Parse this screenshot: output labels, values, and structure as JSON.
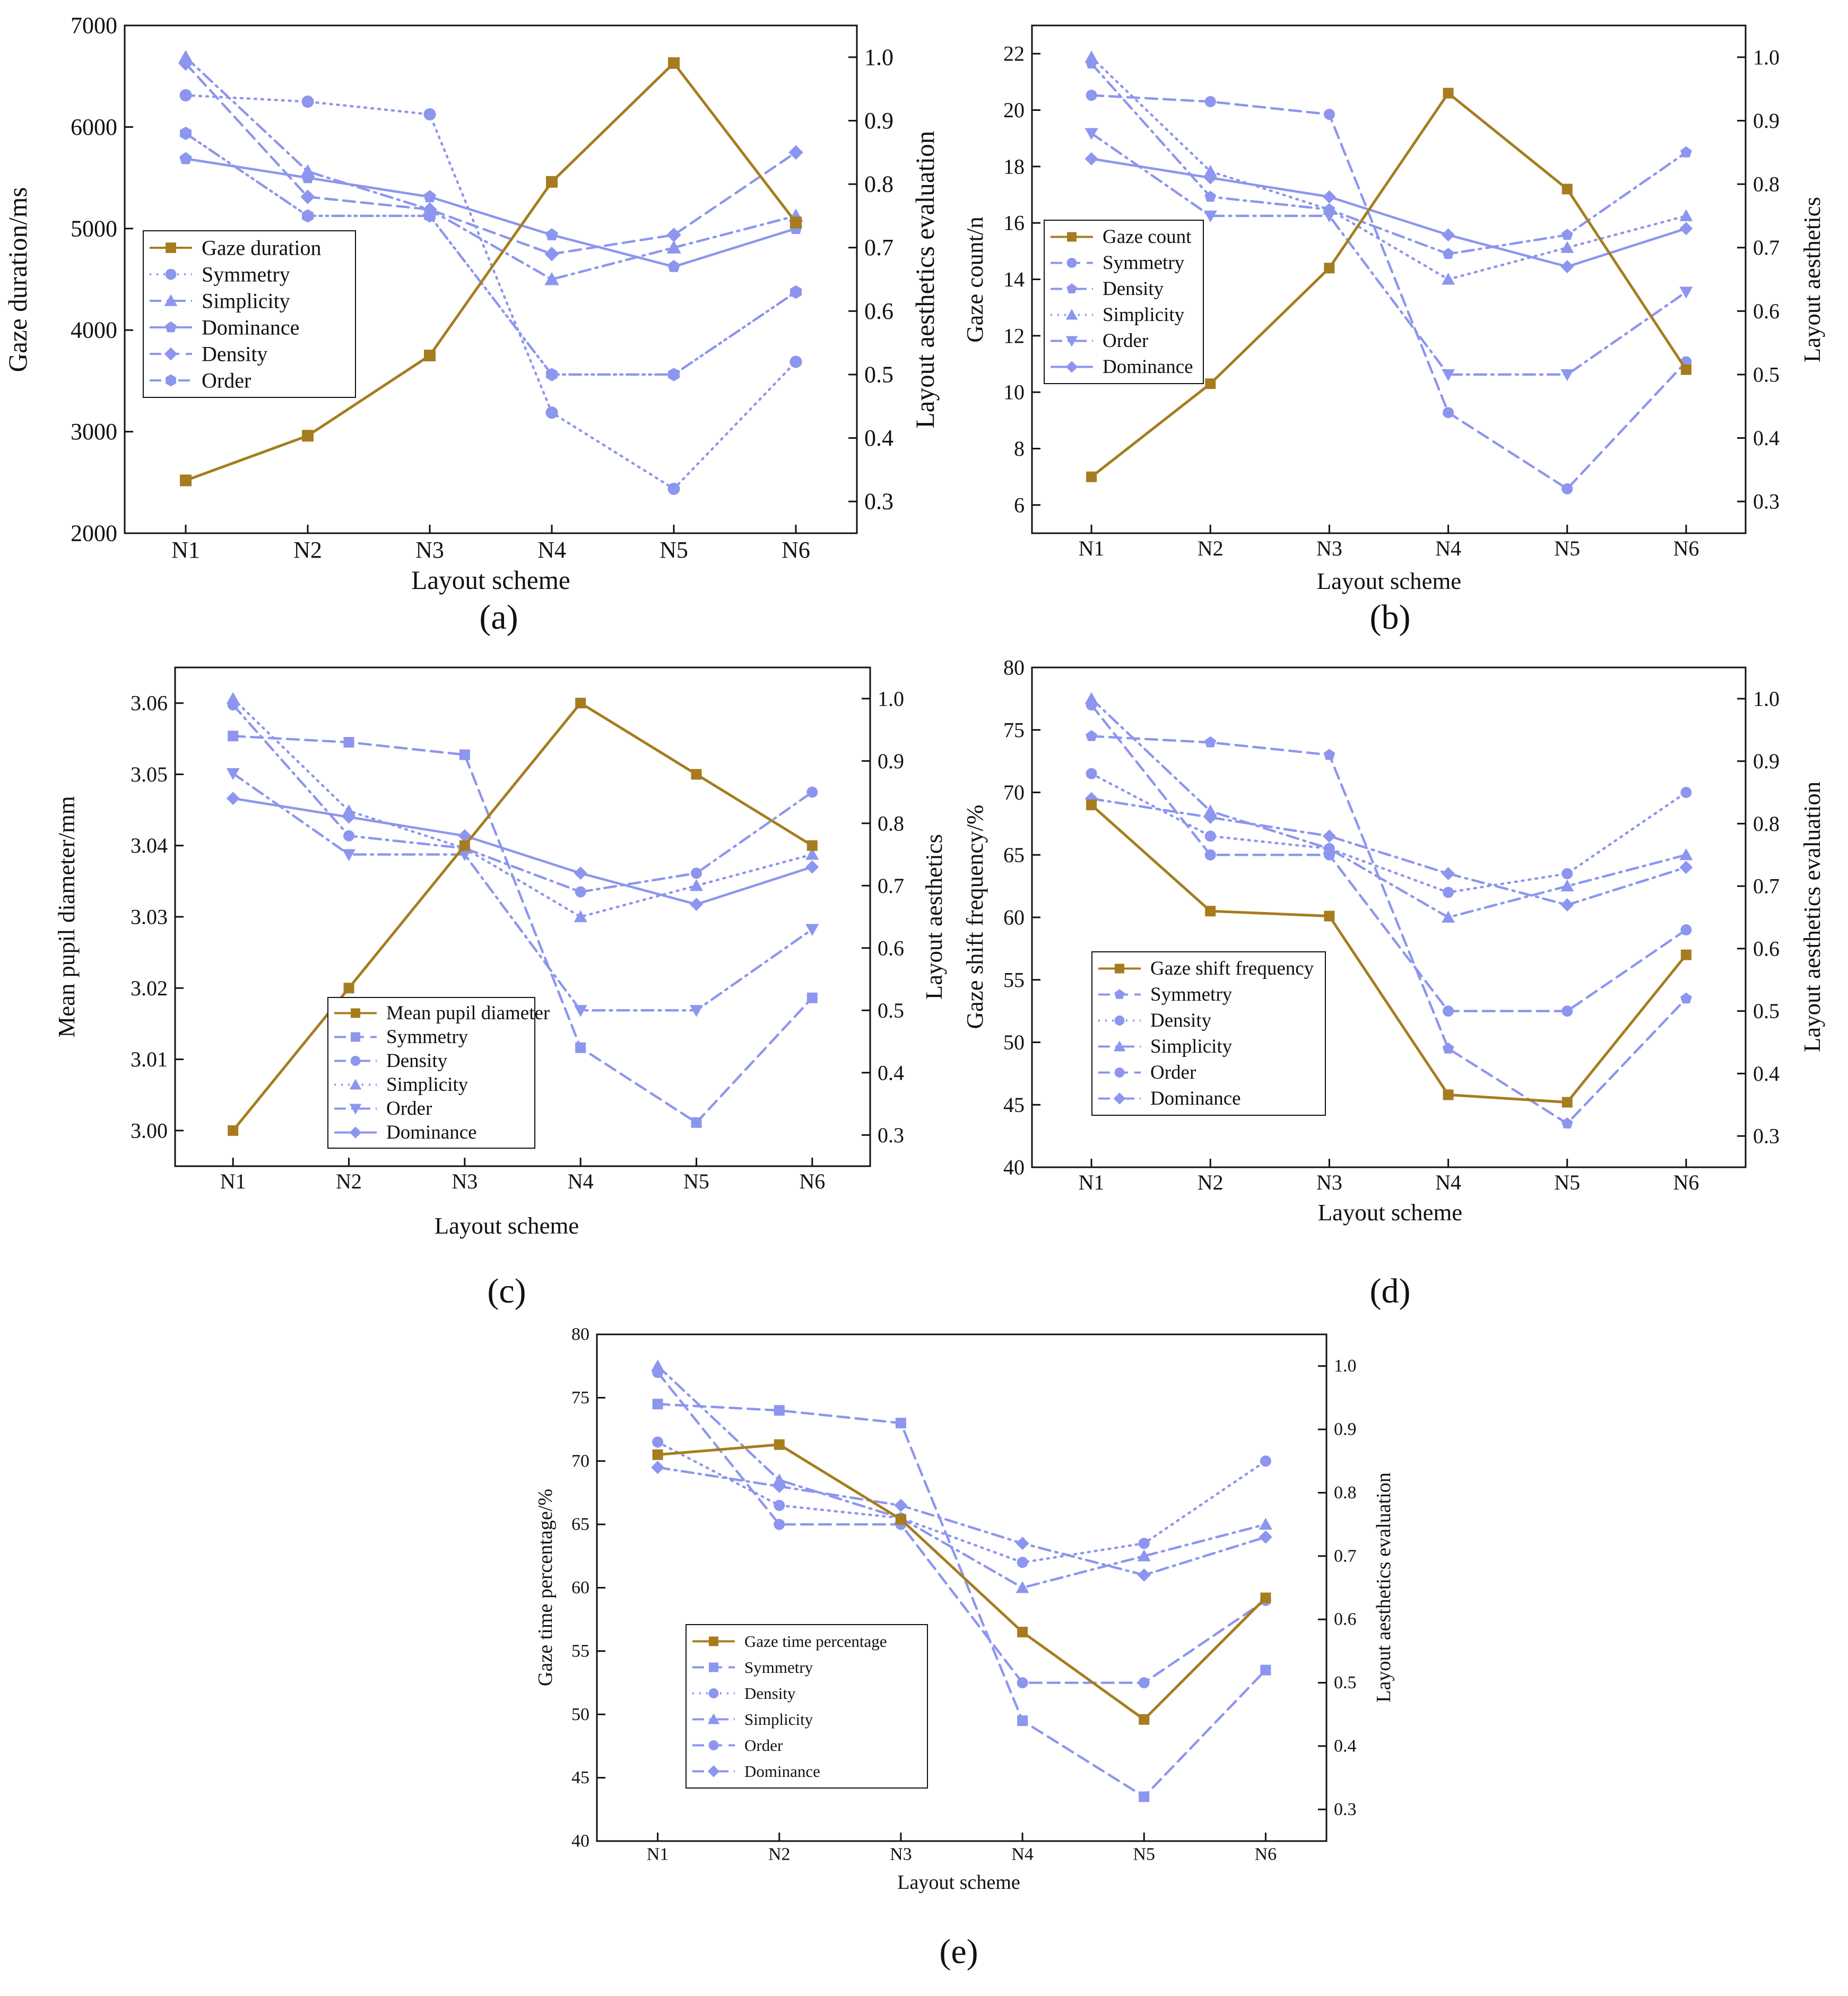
{
  "colors": {
    "primary": "#a67c1e",
    "aesthetic": "#8c96ee",
    "axis": "#111111"
  },
  "chart_data": [
    {
      "id": "a",
      "caption": "(a)",
      "type": "line",
      "categories": [
        "N1",
        "N2",
        "N3",
        "N4",
        "N5",
        "N6"
      ],
      "xlabel": "Layout scheme",
      "ylabel": "Gaze duration/ms",
      "ylabel_right": "Layout aesthetics evaluation",
      "ylim": [
        2000,
        7000
      ],
      "yticks": [
        2000,
        3000,
        4000,
        5000,
        6000,
        7000
      ],
      "yticks_text": [
        "2000",
        "3000",
        "4000",
        "5000",
        "6000",
        "7000"
      ],
      "ylim_right": [
        0.25,
        1.05
      ],
      "yticks_right": [
        0.3,
        0.4,
        0.5,
        0.6,
        0.7,
        0.8,
        0.9,
        1.0
      ],
      "yticks_right_text": [
        "0.3",
        "0.4",
        "0.5",
        "0.6",
        "0.7",
        "0.8",
        "0.9",
        "1.0"
      ],
      "primary": {
        "name": "Gaze duration",
        "marker": "square",
        "values": [
          2520,
          2960,
          3750,
          5460,
          6630,
          5060
        ]
      },
      "series": [
        {
          "name": "Symmetry",
          "marker": "circle",
          "dash": "dot",
          "values": [
            0.94,
            0.93,
            0.91,
            0.44,
            0.32,
            0.52
          ]
        },
        {
          "name": "Simplicity",
          "marker": "triangle",
          "dash": "dashdot",
          "values": [
            1.0,
            0.82,
            0.76,
            0.65,
            0.7,
            0.75
          ]
        },
        {
          "name": "Dominance",
          "marker": "pentagon",
          "dash": "solid",
          "values": [
            0.84,
            0.81,
            0.78,
            0.72,
            0.67,
            0.73
          ]
        },
        {
          "name": "Density",
          "marker": "diamond",
          "dash": "dashed",
          "values": [
            0.99,
            0.78,
            0.76,
            0.69,
            0.72,
            0.85
          ]
        },
        {
          "name": "Order",
          "marker": "hexagon",
          "dash": "dashdotdot",
          "values": [
            0.88,
            0.75,
            0.75,
            0.5,
            0.5,
            0.63
          ]
        }
      ],
      "legend": "left-middle"
    },
    {
      "id": "b",
      "caption": "(b)",
      "type": "line",
      "categories": [
        "N1",
        "N2",
        "N3",
        "N4",
        "N5",
        "N6"
      ],
      "xlabel": "Layout scheme",
      "ylabel": "Gaze count/n",
      "ylabel_right": "Layout aesthetics",
      "ylim": [
        5,
        23
      ],
      "yticks": [
        6,
        8,
        10,
        12,
        14,
        16,
        18,
        20,
        22
      ],
      "yticks_text": [
        "6",
        "8",
        "10",
        "12",
        "14",
        "16",
        "18",
        "20",
        "22"
      ],
      "ylim_right": [
        0.25,
        1.05
      ],
      "yticks_right": [
        0.3,
        0.4,
        0.5,
        0.6,
        0.7,
        0.8,
        0.9,
        1.0
      ],
      "yticks_right_text": [
        "0.3",
        "0.4",
        "0.5",
        "0.6",
        "0.7",
        "0.8",
        "0.9",
        "1.0"
      ],
      "primary": {
        "name": "Gaze count",
        "marker": "square",
        "values": [
          7.0,
          10.3,
          14.4,
          20.6,
          17.2,
          10.8
        ]
      },
      "series": [
        {
          "name": "Symmetry",
          "marker": "circle",
          "dash": "dashed",
          "values": [
            0.94,
            0.93,
            0.91,
            0.44,
            0.32,
            0.52
          ]
        },
        {
          "name": "Density",
          "marker": "pentagon",
          "dash": "dashdot",
          "values": [
            0.99,
            0.78,
            0.76,
            0.69,
            0.72,
            0.85
          ]
        },
        {
          "name": "Simplicity",
          "marker": "triangle",
          "dash": "dot",
          "values": [
            1.0,
            0.82,
            0.76,
            0.65,
            0.7,
            0.75
          ]
        },
        {
          "name": "Order",
          "marker": "triangle-down",
          "dash": "dashdot",
          "values": [
            0.88,
            0.75,
            0.75,
            0.5,
            0.5,
            0.63
          ]
        },
        {
          "name": "Dominance",
          "marker": "diamond",
          "dash": "solid",
          "values": [
            0.84,
            0.81,
            0.78,
            0.72,
            0.67,
            0.73
          ]
        }
      ],
      "legend": "left-middle"
    },
    {
      "id": "c",
      "caption": "(c)",
      "type": "line",
      "categories": [
        "N1",
        "N2",
        "N3",
        "N4",
        "N5",
        "N6"
      ],
      "xlabel": "Layout scheme",
      "ylabel": "Mean pupil diameter/mm",
      "ylabel_right": "Layout aesthetics",
      "ylim": [
        2.995,
        3.065
      ],
      "yticks": [
        3.0,
        3.01,
        3.02,
        3.03,
        3.04,
        3.05,
        3.06
      ],
      "yticks_text": [
        "3.00",
        "3.01",
        "3.02",
        "3.03",
        "3.04",
        "3.05",
        "3.06"
      ],
      "ylim_right": [
        0.25,
        1.05
      ],
      "yticks_right": [
        0.3,
        0.4,
        0.5,
        0.6,
        0.7,
        0.8,
        0.9,
        1.0
      ],
      "yticks_right_text": [
        "0.3",
        "0.4",
        "0.5",
        "0.6",
        "0.7",
        "0.8",
        "0.9",
        "1.0"
      ],
      "primary": {
        "name": "Mean pupil diameter",
        "marker": "square",
        "values": [
          3.0,
          3.02,
          3.04,
          3.06,
          3.05,
          3.04
        ]
      },
      "series": [
        {
          "name": "Symmetry",
          "marker": "square",
          "dash": "dashed",
          "values": [
            0.94,
            0.93,
            0.91,
            0.44,
            0.32,
            0.52
          ]
        },
        {
          "name": "Density",
          "marker": "circle",
          "dash": "dashdot",
          "values": [
            0.99,
            0.78,
            0.76,
            0.69,
            0.72,
            0.85
          ]
        },
        {
          "name": "Simplicity",
          "marker": "triangle",
          "dash": "dot",
          "values": [
            1.0,
            0.82,
            0.76,
            0.65,
            0.7,
            0.75
          ]
        },
        {
          "name": "Order",
          "marker": "triangle-down",
          "dash": "dashdot",
          "values": [
            0.88,
            0.75,
            0.75,
            0.5,
            0.5,
            0.63
          ]
        },
        {
          "name": "Dominance",
          "marker": "diamond",
          "dash": "solid",
          "values": [
            0.84,
            0.81,
            0.78,
            0.72,
            0.67,
            0.73
          ]
        }
      ],
      "legend": "bottom-center"
    },
    {
      "id": "d",
      "caption": "(d)",
      "type": "line",
      "categories": [
        "N1",
        "N2",
        "N3",
        "N4",
        "N5",
        "N6"
      ],
      "xlabel": "Layout scheme",
      "ylabel": "Gaze shift frequency/%",
      "ylabel_right": "Layout aesthetics evaluation",
      "ylim": [
        40,
        80
      ],
      "yticks": [
        40,
        45,
        50,
        55,
        60,
        65,
        70,
        75,
        80
      ],
      "yticks_text": [
        "40",
        "45",
        "50",
        "55",
        "60",
        "65",
        "70",
        "75",
        "80"
      ],
      "ylim_right": [
        0.25,
        1.05
      ],
      "yticks_right": [
        0.3,
        0.4,
        0.5,
        0.6,
        0.7,
        0.8,
        0.9,
        1.0
      ],
      "yticks_right_text": [
        "0.3",
        "0.4",
        "0.5",
        "0.6",
        "0.7",
        "0.8",
        "0.9",
        "1.0"
      ],
      "primary": {
        "name": "Gaze shift frequency",
        "marker": "square",
        "values": [
          69.0,
          60.5,
          60.1,
          45.8,
          45.2,
          57.0
        ]
      },
      "series": [
        {
          "name": "Symmetry",
          "marker": "pentagon",
          "dash": "dashed",
          "values": [
            0.94,
            0.93,
            0.91,
            0.44,
            0.32,
            0.52
          ]
        },
        {
          "name": "Density",
          "marker": "circle",
          "dash": "dot",
          "values": [
            0.88,
            0.78,
            0.76,
            0.69,
            0.72,
            0.85
          ]
        },
        {
          "name": "Simplicity",
          "marker": "triangle",
          "dash": "dashdot",
          "values": [
            1.0,
            0.82,
            0.76,
            0.65,
            0.7,
            0.75
          ]
        },
        {
          "name": "Order",
          "marker": "circle",
          "dash": "dashed",
          "values": [
            0.99,
            0.75,
            0.75,
            0.5,
            0.5,
            0.63
          ]
        },
        {
          "name": "Dominance",
          "marker": "diamond",
          "dash": "dashdot",
          "values": [
            0.84,
            0.81,
            0.78,
            0.72,
            0.67,
            0.73
          ]
        }
      ],
      "legend": "left-middle"
    },
    {
      "id": "e",
      "caption": "(e)",
      "type": "line",
      "categories": [
        "N1",
        "N2",
        "N3",
        "N4",
        "N5",
        "N6"
      ],
      "xlabel": "Layout scheme",
      "ylabel": "Gaze time percentage/%",
      "ylabel_right": "Layout aesthetics evaluation",
      "ylim": [
        40,
        80
      ],
      "yticks": [
        40,
        45,
        50,
        55,
        60,
        65,
        70,
        75,
        80
      ],
      "yticks_text": [
        "40",
        "45",
        "50",
        "55",
        "60",
        "65",
        "70",
        "75",
        "80"
      ],
      "ylim_right": [
        0.25,
        1.05
      ],
      "yticks_right": [
        0.3,
        0.4,
        0.5,
        0.6,
        0.7,
        0.8,
        0.9,
        1.0
      ],
      "yticks_right_text": [
        "0.3",
        "0.4",
        "0.5",
        "0.6",
        "0.7",
        "0.8",
        "0.9",
        "1.0"
      ],
      "primary": {
        "name": "Gaze time percentage",
        "marker": "square",
        "values": [
          70.5,
          71.3,
          65.4,
          56.5,
          49.6,
          59.2
        ]
      },
      "series": [
        {
          "name": "Symmetry",
          "marker": "square",
          "dash": "dashed",
          "values": [
            0.94,
            0.93,
            0.91,
            0.44,
            0.32,
            0.52
          ]
        },
        {
          "name": "Density",
          "marker": "circle",
          "dash": "dot",
          "values": [
            0.88,
            0.78,
            0.76,
            0.69,
            0.72,
            0.85
          ]
        },
        {
          "name": "Simplicity",
          "marker": "triangle",
          "dash": "dashdot",
          "values": [
            1.0,
            0.82,
            0.76,
            0.65,
            0.7,
            0.75
          ]
        },
        {
          "name": "Order",
          "marker": "circle",
          "dash": "dashed",
          "values": [
            0.99,
            0.75,
            0.75,
            0.5,
            0.5,
            0.63
          ]
        },
        {
          "name": "Dominance",
          "marker": "diamond",
          "dash": "dashdot",
          "values": [
            0.84,
            0.81,
            0.78,
            0.72,
            0.67,
            0.73
          ]
        }
      ],
      "legend": "bottom-left"
    }
  ]
}
